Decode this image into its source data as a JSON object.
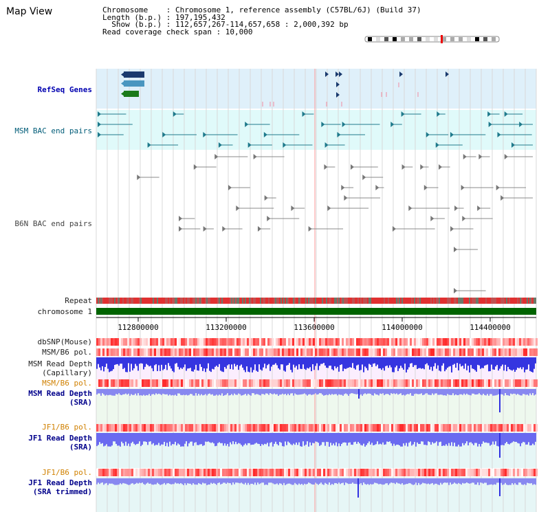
{
  "page": {
    "title": "Map View"
  },
  "info": {
    "chromosome_line": "Chromosome    : Chromosome 1, reference assembly (C57BL/6J) (Build 37)",
    "length_line": "Length (b.p.) : 197,195,432",
    "show_line": "  Show (b.p.) : 112,657,267-114,657,658 : 2,000,392 bp",
    "coverage_line": "Read coverage check span : 10,000"
  },
  "tracks": {
    "refseq": "RefSeq Genes",
    "msm_bac": "MSM BAC end pairs",
    "b6n_bac": "B6N BAC end pairs",
    "repeat": "Repeat",
    "chromosome": "chromosome 1",
    "dbsnp": "dbSNP(Mouse)",
    "msm_b6_pol_1": "MSM/B6 pol.",
    "msm_read_depth_cap": "MSM Read Depth\n(Capillary)",
    "msm_b6_pol_2": "MSM/B6 pol.",
    "msm_read_depth_sra": "MSM Read Depth\n(SRA)",
    "jf1_b6_pol_1": "JF1/B6 pol.",
    "jf1_read_depth_sra": "JF1 Read Depth\n(SRA)",
    "jf1_b6_pol_2": "JF1/B6 pol.",
    "jf1_read_depth_trim": "JF1 Read Depth\n(SRA trimmed)"
  },
  "axis": {
    "ticks": [
      "112800000",
      "113200000",
      "113600000",
      "114000000",
      "114400000"
    ]
  },
  "colors": {
    "refseq_bg": "#dff0fa",
    "msm_bac_bg": "#e0fafa",
    "gene_navy": "#1a3a6e",
    "gene_steel": "#4a96c0",
    "gene_green": "#1a7a1a",
    "bac_teal": "#1f7a8c",
    "bac_gray": "#777777",
    "chromosome_green": "#006400",
    "pol_red": "#e83030",
    "depth_blue": "#3030e0",
    "depth_light": "#8080f0",
    "selection_line": "#ff9999"
  }
}
